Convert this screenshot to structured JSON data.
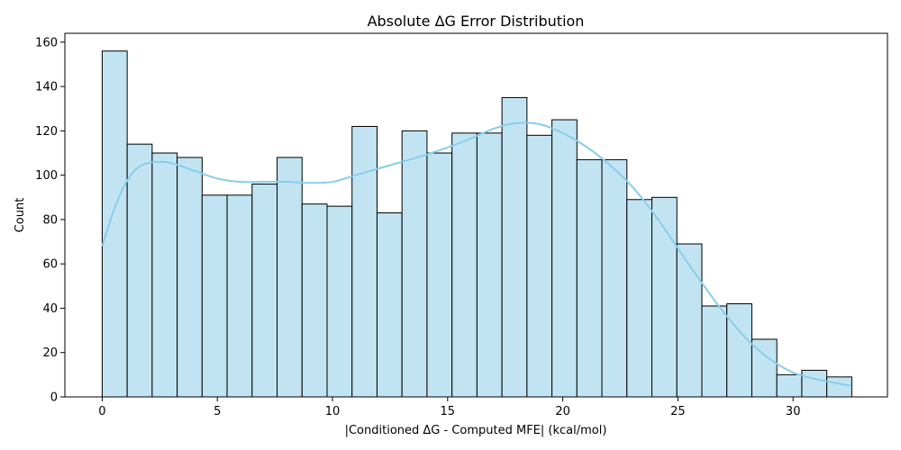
{
  "chart_data": {
    "type": "bar",
    "subtype": "histogram_with_kde",
    "title": "Absolute ΔG Error Distribution",
    "xlabel": "|Conditioned ΔG - Computed MFE| (kcal/mol)",
    "ylabel": "Count",
    "xlim": [
      -1.62,
      34.1
    ],
    "ylim": [
      0,
      164
    ],
    "xticks": [
      0,
      5,
      10,
      15,
      20,
      25,
      30
    ],
    "yticks": [
      0,
      20,
      40,
      60,
      80,
      100,
      120,
      140,
      160
    ],
    "grid": false,
    "bin_start": 0,
    "bin_width": 1.085,
    "counts": [
      156,
      114,
      110,
      108,
      91,
      91,
      96,
      108,
      87,
      86,
      122,
      83,
      120,
      110,
      119,
      119,
      135,
      118,
      125,
      107,
      107,
      89,
      90,
      69,
      41,
      42,
      26,
      10,
      12,
      9
    ],
    "kde": {
      "x": [
        0,
        0.5,
        1,
        1.5,
        2,
        2.5,
        3,
        4,
        5,
        6,
        7,
        8,
        9,
        10,
        11,
        12,
        13,
        14,
        15,
        16,
        17,
        18,
        19,
        20,
        21,
        22,
        23,
        24,
        25,
        26,
        27,
        28,
        29,
        30,
        31,
        32,
        32.5
      ],
      "y": [
        68,
        84,
        96,
        103,
        105.5,
        106,
        105.5,
        102,
        98.5,
        97,
        97,
        97,
        96.5,
        97,
        100,
        103,
        106,
        109,
        112.5,
        116.5,
        121,
        123.5,
        123,
        119,
        113,
        105,
        95,
        82,
        67,
        52,
        38,
        26,
        17,
        11,
        8,
        6,
        5
      ]
    },
    "colors": {
      "bar_fill": "#c2e4f2",
      "bar_edge": "#000000",
      "kde_line": "#87ceeb"
    }
  }
}
